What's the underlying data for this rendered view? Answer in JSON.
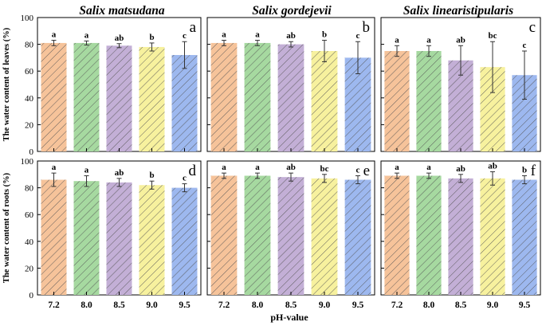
{
  "figure": {
    "xlabel": "pH-value",
    "ylabel_top": "The water content of leaves (%)",
    "ylabel_bottom": "The water content of roots (%)",
    "species": [
      "Salix matsudana",
      "Salix gordejevii",
      "Salix linearistipularis"
    ],
    "categories": [
      "7.2",
      "8.0",
      "8.5",
      "9.0",
      "9.5"
    ],
    "yticks": [
      "0",
      "20",
      "40",
      "60",
      "80",
      "100"
    ],
    "colors": [
      "#f6c39a",
      "#a6d9a0",
      "#c3afd6",
      "#f7f19e",
      "#9db8ef"
    ],
    "hatch_color": "#555555"
  },
  "chart_data": [
    {
      "type": "bar",
      "panel": "a",
      "row": "leaves",
      "species": "Salix matsudana",
      "ylim": [
        0,
        100
      ],
      "values": [
        81,
        81,
        79,
        78,
        72
      ],
      "errors": [
        2,
        1.5,
        1.5,
        3,
        10
      ],
      "letters": [
        "a",
        "a",
        "ab",
        "b",
        "c"
      ]
    },
    {
      "type": "bar",
      "panel": "b",
      "row": "leaves",
      "species": "Salix gordejevii",
      "ylim": [
        0,
        100
      ],
      "values": [
        81,
        81,
        80,
        75,
        70
      ],
      "errors": [
        2,
        2,
        2,
        8,
        12
      ],
      "letters": [
        "a",
        "a",
        "ab",
        "b",
        "c"
      ]
    },
    {
      "type": "bar",
      "panel": "c",
      "row": "leaves",
      "species": "Salix linearistipularis",
      "ylim": [
        0,
        100
      ],
      "values": [
        75,
        75,
        68,
        63,
        57
      ],
      "errors": [
        4,
        4,
        11,
        19,
        18
      ],
      "letters": [
        "a",
        "a",
        "ab",
        "bc",
        "c"
      ]
    },
    {
      "type": "bar",
      "panel": "d",
      "row": "roots",
      "species": "Salix matsudana",
      "ylim": [
        0,
        100
      ],
      "values": [
        86,
        85,
        84,
        82,
        80
      ],
      "errors": [
        5,
        4,
        3,
        3,
        3
      ],
      "letters": [
        "a",
        "a",
        "ab",
        "b",
        "c"
      ]
    },
    {
      "type": "bar",
      "panel": "e",
      "row": "roots",
      "species": "Salix gordejevii",
      "ylim": [
        0,
        100
      ],
      "values": [
        89,
        89,
        88,
        87,
        86
      ],
      "errors": [
        2,
        2,
        3,
        3,
        3
      ],
      "letters": [
        "a",
        "a",
        "ab",
        "bc",
        "c"
      ]
    },
    {
      "type": "bar",
      "panel": "f",
      "row": "roots",
      "species": "Salix linearistipularis",
      "ylim": [
        0,
        100
      ],
      "values": [
        89,
        89,
        87,
        87,
        86
      ],
      "errors": [
        2,
        2,
        3,
        5,
        3
      ],
      "letters": [
        "a",
        "a",
        "ab",
        "ab",
        "b"
      ]
    }
  ]
}
